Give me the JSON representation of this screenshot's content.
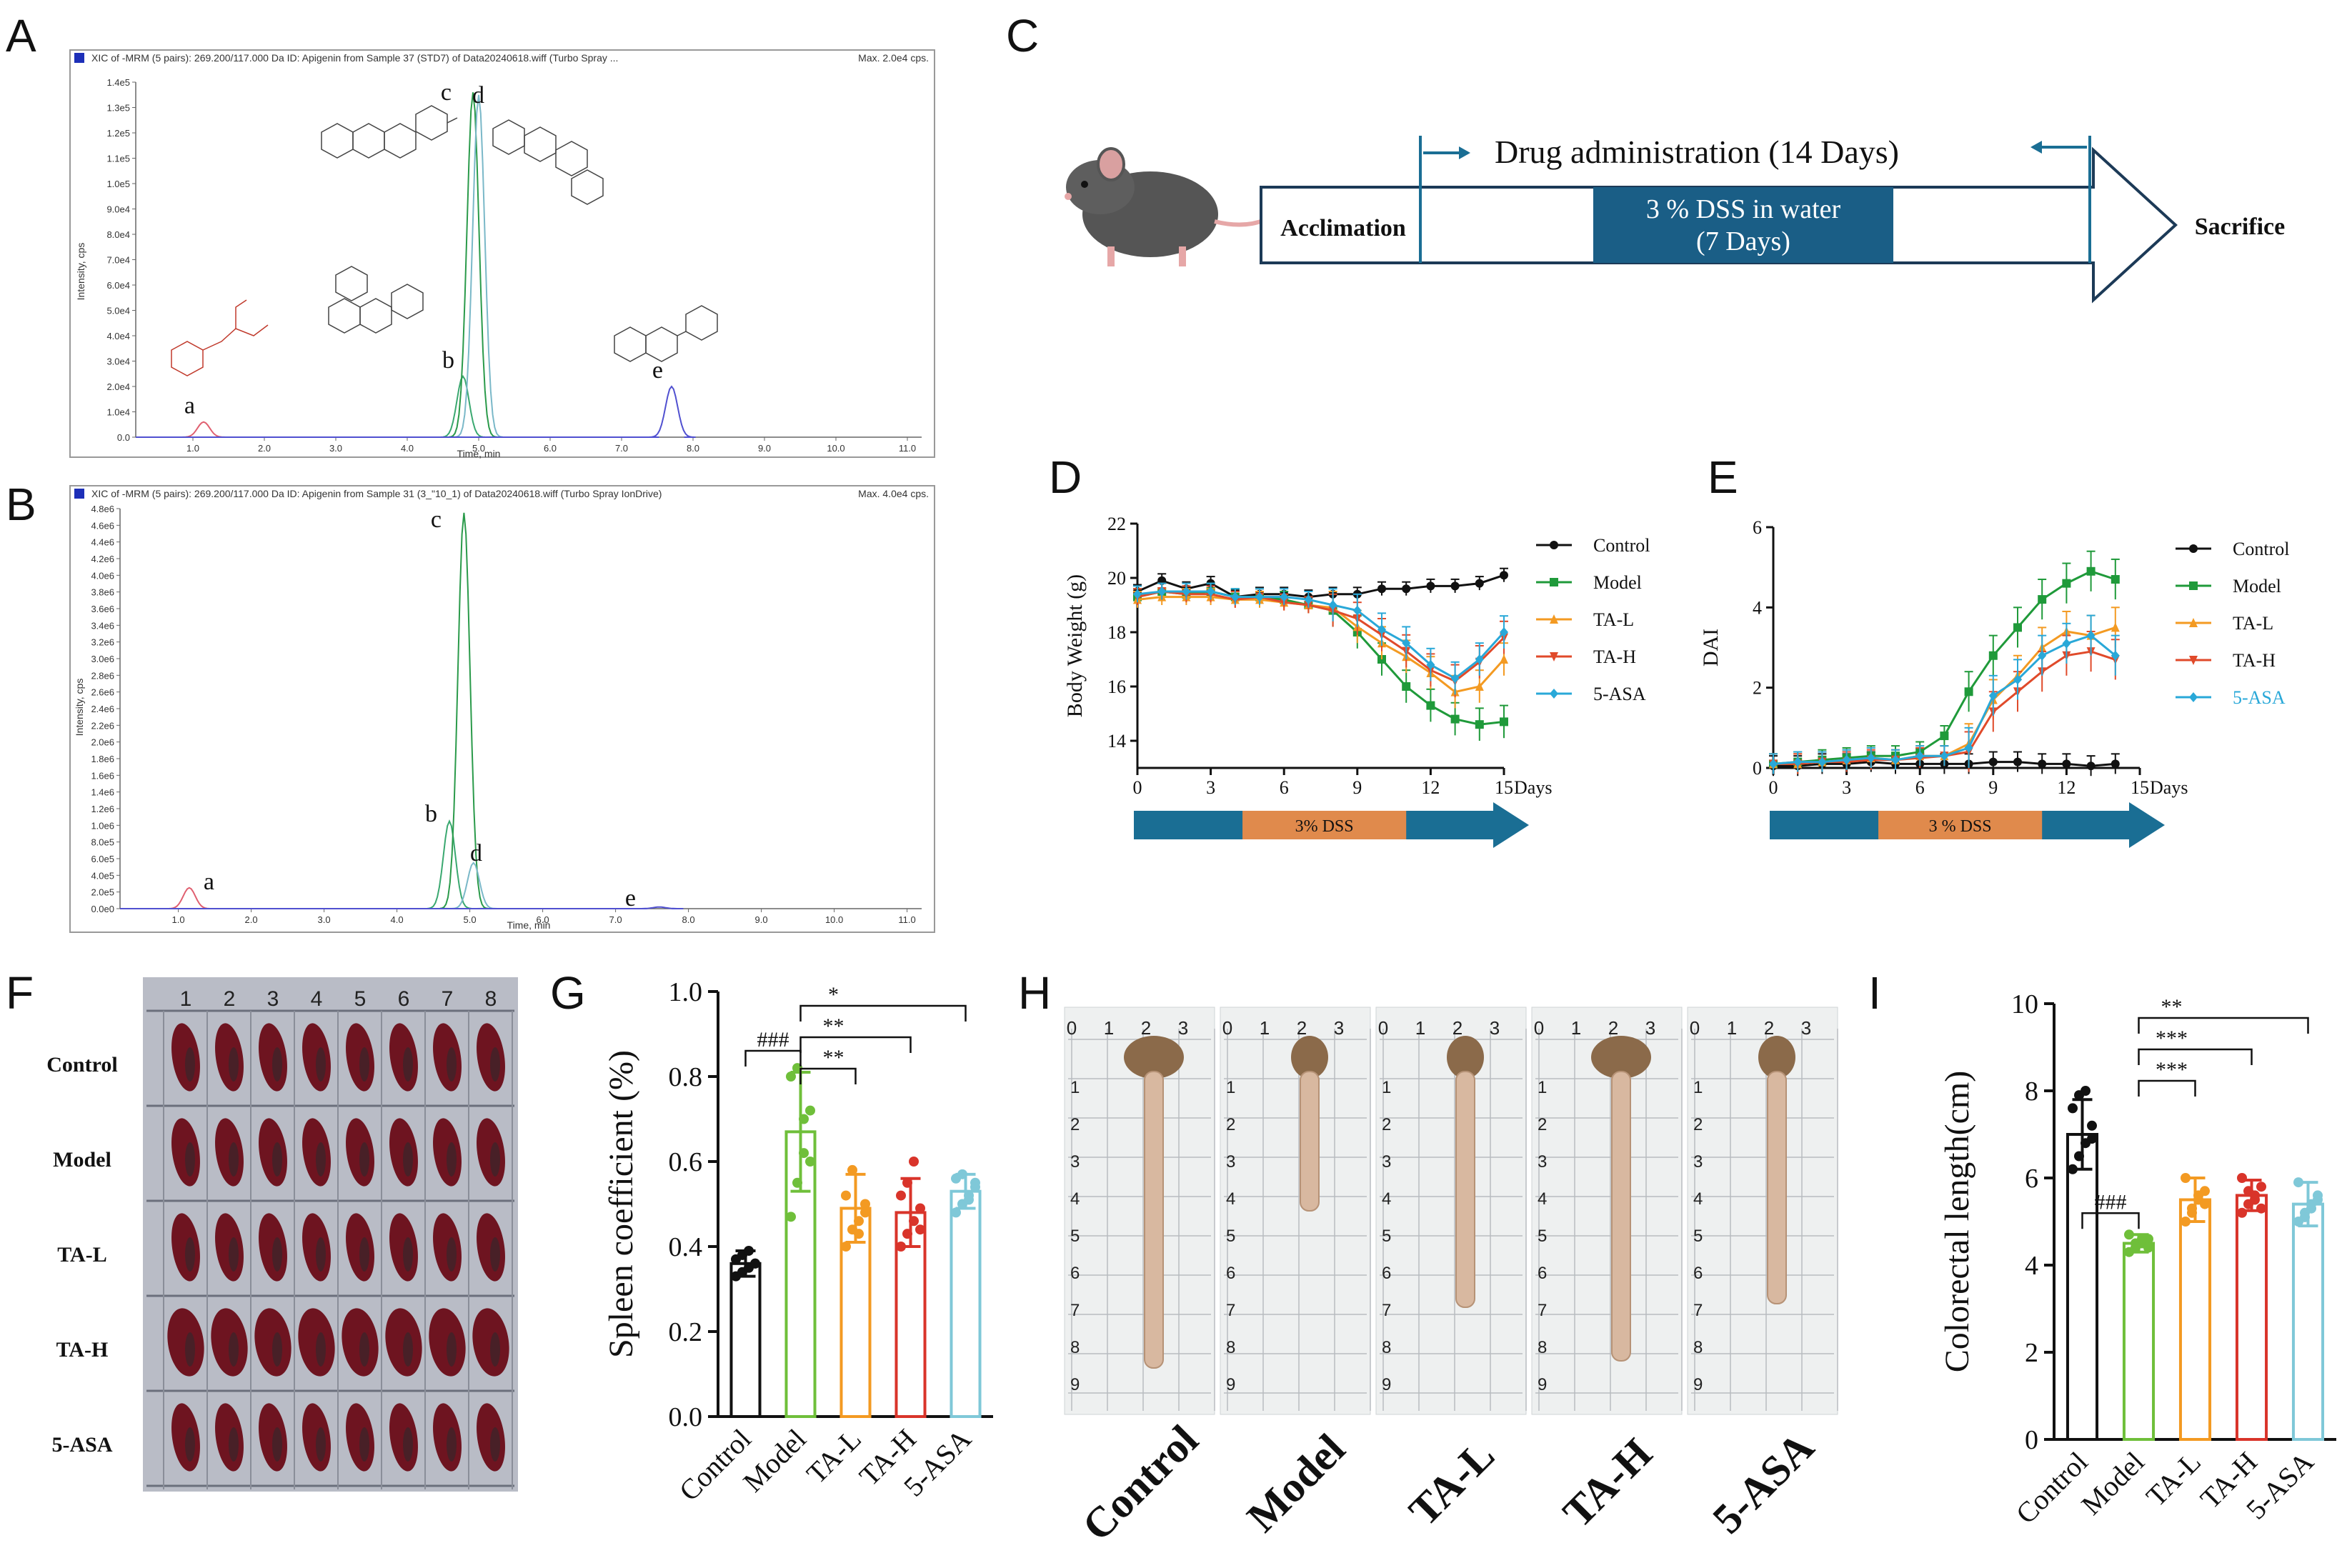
{
  "panels": {
    "a": "A",
    "b": "B",
    "c": "C",
    "d": "D",
    "e": "E",
    "f": "F",
    "g": "G",
    "h": "H",
    "i": "I"
  },
  "colors": {
    "control": "#111111",
    "model": "#1f9a3a",
    "tal": "#f39a22",
    "tah": "#e04a2a",
    "asa": "#29a8d8",
    "bar_model": "#6fbf3a",
    "bar_tal": "#f39a22",
    "bar_tah": "#d9342a",
    "bar_asa": "#7fc8d8",
    "timeline": "#1a6e94",
    "dss": "#e08a4c"
  },
  "chrom_a": {
    "header": "XIC of -MRM (5 pairs): 269.200/117.000 Da ID: Apigenin from Sample 37 (STD7) of Data20240618.wiff (Turbo Spray ...",
    "max": "Max. 2.0e4 cps.",
    "ylabel": "Intensity, cps",
    "xlabel": "Time, min",
    "yticks": [
      "0.0",
      "1.0e4",
      "2.0e4",
      "3.0e4",
      "4.0e4",
      "5.0e4",
      "6.0e4",
      "7.0e4",
      "8.0e4",
      "9.0e4",
      "1.0e5",
      "1.1e5",
      "1.2e5",
      "1.3e5",
      "1.4e5"
    ],
    "xticks": [
      "1.0",
      "2.0",
      "3.0",
      "4.0",
      "5.0",
      "6.0",
      "7.0",
      "8.0",
      "9.0",
      "10.0",
      "11.0"
    ],
    "peaks": [
      {
        "label": "a",
        "time": 1.15,
        "height": 6000.0,
        "color": "#e06070"
      },
      {
        "label": "b",
        "time": 4.78,
        "height": 24000.0,
        "color": "#3aa870"
      },
      {
        "label": "c",
        "time": 4.92,
        "height": 136000.0,
        "color": "#2a9a4a"
      },
      {
        "label": "d",
        "time": 5.0,
        "height": 135000.0,
        "color": "#7ab8c8"
      },
      {
        "label": "e",
        "time": 7.7,
        "height": 20000.0,
        "color": "#5050d0"
      }
    ]
  },
  "chrom_b": {
    "header": "XIC of -MRM (5 pairs): 269.200/117.000 Da ID: Apigenin from Sample 31 (3_\"10_1) of Data20240618.wiff (Turbo Spray IonDrive)",
    "max": "Max. 4.0e4 cps.",
    "ylabel": "Intensity, cps",
    "xlabel": "Time, min",
    "yticks": [
      "0.0e0",
      "2.0e5",
      "4.0e5",
      "6.0e5",
      "8.0e5",
      "1.0e6",
      "1.2e6",
      "1.4e6",
      "1.6e6",
      "1.8e6",
      "2.0e6",
      "2.2e6",
      "2.4e6",
      "2.6e6",
      "2.8e6",
      "3.0e6",
      "3.2e6",
      "3.4e6",
      "3.6e6",
      "3.8e6",
      "4.0e6",
      "4.2e6",
      "4.4e6",
      "4.6e6",
      "4.8e6"
    ],
    "xticks": [
      "1.0",
      "2.0",
      "3.0",
      "4.0",
      "5.0",
      "6.0",
      "7.0",
      "8.0",
      "9.0",
      "10.0",
      "11.0"
    ],
    "peaks": [
      {
        "label": "a",
        "time": 1.15,
        "height": 250000.0,
        "color": "#e06070"
      },
      {
        "label": "b",
        "time": 4.72,
        "height": 1050000.0,
        "color": "#3aa870"
      },
      {
        "label": "c",
        "time": 4.92,
        "height": 4750000.0,
        "color": "#2a9a4a"
      },
      {
        "label": "d",
        "time": 5.05,
        "height": 550000.0,
        "color": "#7ab8c8"
      },
      {
        "label": "e",
        "time": 7.6,
        "height": 20000.0,
        "color": "#5050d0"
      }
    ]
  },
  "schematic": {
    "drug": "Drug administration (14 Days)",
    "dss_line1": "3 % DSS in water",
    "dss_line2": "(7 Days)",
    "acclimation": "Acclimation",
    "sacrifice": "Sacrifice"
  },
  "chart_data": [
    {
      "type": "line",
      "id": "D",
      "title": "",
      "xlabel": "Days",
      "ylabel": "Body Weight (g)",
      "xticks": [
        0,
        3,
        6,
        9,
        12,
        15
      ],
      "ylim": [
        13,
        22
      ],
      "yticks": [
        14,
        16,
        18,
        20,
        22
      ],
      "x": [
        0,
        1,
        2,
        3,
        4,
        5,
        6,
        7,
        8,
        9,
        10,
        11,
        12,
        13,
        14,
        15
      ],
      "series": [
        {
          "name": "Control",
          "values": [
            19.5,
            19.9,
            19.6,
            19.8,
            19.3,
            19.4,
            19.4,
            19.3,
            19.4,
            19.4,
            19.6,
            19.6,
            19.7,
            19.7,
            19.8,
            20.1
          ]
        },
        {
          "name": "Model",
          "values": [
            19.3,
            19.5,
            19.4,
            19.5,
            19.3,
            19.3,
            19.2,
            19.0,
            18.8,
            18.0,
            17.0,
            16.0,
            15.3,
            14.8,
            14.6,
            14.7
          ]
        },
        {
          "name": "TA-L",
          "values": [
            19.2,
            19.3,
            19.3,
            19.3,
            19.2,
            19.2,
            19.1,
            19.0,
            18.9,
            18.2,
            17.6,
            17.1,
            16.5,
            15.8,
            16.0,
            17.0
          ]
        },
        {
          "name": "TA-H",
          "values": [
            19.3,
            19.5,
            19.4,
            19.4,
            19.2,
            19.3,
            19.1,
            19.0,
            18.8,
            18.5,
            17.9,
            17.3,
            16.6,
            16.2,
            16.9,
            17.8
          ]
        },
        {
          "name": "5-ASA",
          "values": [
            19.4,
            19.5,
            19.5,
            19.5,
            19.3,
            19.3,
            19.3,
            19.2,
            19.0,
            18.8,
            18.1,
            17.6,
            16.8,
            16.3,
            17.0,
            18.0
          ]
        }
      ],
      "dss_label": "3% DSS",
      "dss_range": [
        4.3,
        11.0
      ],
      "days_label": "Days"
    },
    {
      "type": "line",
      "id": "E",
      "title": "",
      "xlabel": "Days",
      "ylabel": "DAI",
      "xticks": [
        0,
        3,
        6,
        9,
        12,
        15
      ],
      "ylim": [
        0,
        6
      ],
      "yticks": [
        0,
        2,
        4,
        6
      ],
      "x": [
        0,
        1,
        2,
        3,
        4,
        5,
        6,
        7,
        8,
        9,
        10,
        11,
        12,
        13,
        14
      ],
      "series": [
        {
          "name": "Control",
          "values": [
            0.05,
            0.05,
            0.1,
            0.1,
            0.15,
            0.1,
            0.1,
            0.1,
            0.1,
            0.15,
            0.15,
            0.1,
            0.1,
            0.05,
            0.1
          ]
        },
        {
          "name": "Model",
          "values": [
            0.1,
            0.15,
            0.2,
            0.25,
            0.3,
            0.3,
            0.4,
            0.8,
            1.9,
            2.8,
            3.5,
            4.2,
            4.6,
            4.9,
            4.7
          ]
        },
        {
          "name": "TA-L",
          "values": [
            0.1,
            0.1,
            0.15,
            0.2,
            0.25,
            0.2,
            0.3,
            0.3,
            0.6,
            1.7,
            2.3,
            3.0,
            3.4,
            3.3,
            3.5
          ]
        },
        {
          "name": "TA-H",
          "values": [
            0.1,
            0.1,
            0.15,
            0.15,
            0.2,
            0.2,
            0.25,
            0.3,
            0.4,
            1.4,
            1.9,
            2.4,
            2.8,
            2.9,
            2.7
          ]
        },
        {
          "name": "5-ASA",
          "values": [
            0.1,
            0.15,
            0.15,
            0.2,
            0.25,
            0.2,
            0.3,
            0.3,
            0.5,
            1.8,
            2.2,
            2.8,
            3.1,
            3.3,
            2.8
          ]
        }
      ],
      "dss_label": "3 % DSS",
      "dss_range": [
        4.3,
        11.0
      ],
      "days_label": "Days"
    },
    {
      "type": "bar",
      "id": "G",
      "ylabel": "Spleen coefficient (%)",
      "categories": [
        "Control",
        "Model",
        "TA-L",
        "TA-H",
        "5-ASA"
      ],
      "values": [
        0.36,
        0.67,
        0.49,
        0.48,
        0.53
      ],
      "errors": [
        0.03,
        0.14,
        0.08,
        0.08,
        0.04
      ],
      "points": [
        [
          0.33,
          0.34,
          0.35,
          0.36,
          0.37,
          0.38,
          0.39,
          0.36
        ],
        [
          0.47,
          0.55,
          0.62,
          0.72,
          0.8,
          0.82,
          0.7,
          0.6
        ],
        [
          0.4,
          0.44,
          0.46,
          0.5,
          0.52,
          0.58,
          0.43,
          0.48
        ],
        [
          0.4,
          0.43,
          0.46,
          0.49,
          0.52,
          0.55,
          0.6,
          0.44
        ],
        [
          0.48,
          0.5,
          0.52,
          0.54,
          0.56,
          0.57,
          0.51,
          0.55
        ]
      ],
      "ylim": [
        0,
        1.0
      ],
      "yticks": [
        "0.0",
        "0.2",
        "0.4",
        "0.6",
        "0.8",
        "1.0"
      ],
      "sig": [
        {
          "from": 0,
          "to": 1,
          "label": "###"
        },
        {
          "from": 1,
          "to": 2,
          "label": "**"
        },
        {
          "from": 1,
          "to": 3,
          "label": "**"
        },
        {
          "from": 1,
          "to": 4,
          "label": "*"
        }
      ]
    },
    {
      "type": "bar",
      "id": "I",
      "ylabel": "Colorectal length(cm)",
      "categories": [
        "Control",
        "Model",
        "TA-L",
        "TA-H",
        "5-ASA"
      ],
      "values": [
        7.0,
        4.5,
        5.5,
        5.6,
        5.4
      ],
      "errors": [
        0.8,
        0.2,
        0.5,
        0.35,
        0.5
      ],
      "points": [
        [
          6.2,
          6.5,
          6.8,
          7.2,
          7.6,
          7.9,
          8.0,
          6.9
        ],
        [
          4.3,
          4.4,
          4.5,
          4.6,
          4.7,
          4.5,
          4.6,
          4.4
        ],
        [
          5.0,
          5.3,
          5.5,
          5.7,
          6.0,
          5.2,
          5.6,
          5.4
        ],
        [
          5.2,
          5.4,
          5.6,
          5.8,
          6.0,
          5.7,
          5.5,
          5.3
        ],
        [
          5.0,
          5.2,
          5.4,
          5.6,
          5.9,
          5.1,
          5.3,
          5.5
        ]
      ],
      "ylim": [
        0,
        10
      ],
      "yticks": [
        "0",
        "2",
        "4",
        "6",
        "8",
        "10"
      ],
      "sig": [
        {
          "from": 0,
          "to": 1,
          "label": "###"
        },
        {
          "from": 1,
          "to": 2,
          "label": "***"
        },
        {
          "from": 1,
          "to": 3,
          "label": "***"
        },
        {
          "from": 1,
          "to": 4,
          "label": "**"
        }
      ]
    }
  ],
  "photo_f": {
    "rows": [
      "Control",
      "Model",
      "TA-L",
      "TA-H",
      "5-ASA"
    ],
    "cols": [
      "1",
      "2",
      "3",
      "4",
      "5",
      "6",
      "7",
      "8"
    ]
  },
  "photo_h": {
    "groups": [
      "Control",
      "Model",
      "TA-L",
      "TA-H",
      "5-ASA"
    ],
    "ruler_top": [
      "0",
      "1",
      "2",
      "3"
    ],
    "ruler_side": [
      "1",
      "2",
      "3",
      "4",
      "5",
      "6",
      "7",
      "8",
      "9"
    ]
  }
}
